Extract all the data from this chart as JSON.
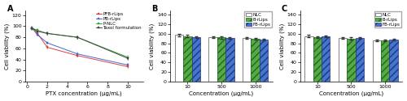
{
  "panel_A": {
    "label": "A",
    "x": [
      0.5,
      1,
      2,
      5,
      10
    ],
    "series": {
      "PFB-rLips": {
        "color": "#d94040",
        "values": [
          96,
          88,
          62,
          47,
          27
        ]
      },
      "PB-rLips": {
        "color": "#4466cc",
        "values": [
          97,
          85,
          70,
          50,
          30
        ]
      },
      "P-NLC": {
        "color": "#33aa33",
        "values": [
          96,
          93,
          87,
          80,
          44
        ]
      },
      "Taxol formulation": {
        "color": "#444444",
        "values": [
          97,
          91,
          87,
          80,
          42
        ]
      }
    },
    "xlabel": "PTX concentration (μg/mL)",
    "ylabel": "Cell viability (%)",
    "ylim": [
      0,
      128
    ],
    "yticks": [
      0,
      20,
      40,
      60,
      80,
      100,
      120
    ],
    "xticks": [
      0,
      2,
      4,
      6,
      8,
      10
    ],
    "xlim": [
      -0.2,
      11.5
    ]
  },
  "panel_B": {
    "label": "B",
    "x_labels": [
      "10",
      "500",
      "1000"
    ],
    "series": {
      "NLC": {
        "color": "#ffffff",
        "edge": "#555555",
        "hatch": "",
        "values": [
          97,
          93,
          91
        ]
      },
      "B-rLips": {
        "color": "#55aa44",
        "edge": "#226622",
        "hatch": "////",
        "values": [
          95,
          92,
          89
        ]
      },
      "FB-rLips": {
        "color": "#4477cc",
        "edge": "#223388",
        "hatch": "////",
        "values": [
          93,
          91,
          88
        ]
      }
    },
    "xlabel": "Concentration (μg/mL)",
    "ylabel": "Cell viability (%)",
    "ylim": [
      0,
      148
    ],
    "yticks": [
      0,
      20,
      40,
      60,
      80,
      100,
      120,
      140
    ]
  },
  "panel_C": {
    "label": "C",
    "x_labels": [
      "10",
      "500",
      "1000"
    ],
    "series": {
      "NLC": {
        "color": "#ffffff",
        "edge": "#555555",
        "hatch": "",
        "values": [
          95,
          91,
          86
        ]
      },
      "B-rLips": {
        "color": "#55aa44",
        "edge": "#226622",
        "hatch": "////",
        "values": [
          93,
          90,
          86
        ]
      },
      "FB-rLips": {
        "color": "#4477cc",
        "edge": "#223388",
        "hatch": "////",
        "values": [
          94,
          91,
          88
        ]
      }
    },
    "xlabel": "Concentration (μg/mL)",
    "ylabel": "Cell viability (%)",
    "ylim": [
      0,
      148
    ],
    "yticks": [
      0,
      20,
      40,
      60,
      80,
      100,
      120,
      140
    ]
  },
  "font_size": 5,
  "tick_font_size": 4.5,
  "legend_font_size": 4.0,
  "background": "#ffffff",
  "error_val": 2.0
}
